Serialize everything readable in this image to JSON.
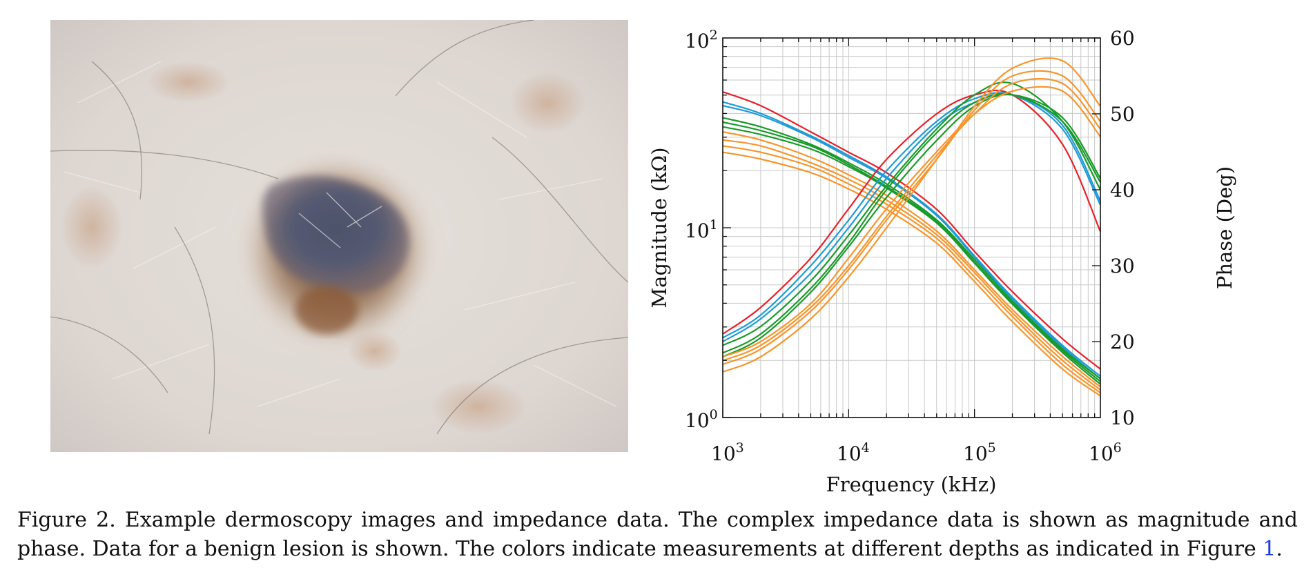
{
  "figure": {
    "caption_prefix": "Figure 2. Example dermoscopy images and impedance data.  The complex impedance data is shown as magnitude and phase. Data for a benign lesion is shown. The colors indicate measurements at different depths as indicated in Figure ",
    "caption_link": "1",
    "caption_suffix": "."
  },
  "chart_data": {
    "type": "line",
    "xlabel": "Frequency (kHz)",
    "ylabel": "Magnitude (kΩ)",
    "ylabel_right": "Phase (Deg)",
    "xscale": "log",
    "yscale": "log",
    "xlim": [
      1000,
      1000000
    ],
    "ylim": [
      1,
      100
    ],
    "ylim_right": [
      10,
      60
    ],
    "x_ticks": [
      {
        "base": "10",
        "exp": "3"
      },
      {
        "base": "10",
        "exp": "4"
      },
      {
        "base": "10",
        "exp": "5"
      },
      {
        "base": "10",
        "exp": "6"
      }
    ],
    "y_ticks": [
      {
        "base": "10",
        "exp": "0"
      },
      {
        "base": "10",
        "exp": "1"
      },
      {
        "base": "10",
        "exp": "2"
      }
    ],
    "y_ticks_right": [
      "10",
      "20",
      "30",
      "40",
      "50",
      "60"
    ],
    "grid": true,
    "colors": {
      "red": "#e8202a",
      "blue": "#1f9bd6",
      "green": "#1a9a2a",
      "orange": "#f7952b"
    },
    "x": [
      1000,
      2000,
      5000,
      10000,
      20000,
      50000,
      100000,
      200000,
      500000,
      1000000
    ],
    "series": [
      {
        "color": "red",
        "axis": "left",
        "values": [
          52,
          44,
          32,
          25,
          19.5,
          12.5,
          7.5,
          4.6,
          2.6,
          1.8
        ]
      },
      {
        "color": "blue",
        "axis": "left",
        "values": [
          46,
          40,
          30.5,
          24,
          18.5,
          11.8,
          7.1,
          4.3,
          2.4,
          1.65
        ]
      },
      {
        "color": "blue",
        "axis": "left",
        "values": [
          44,
          39,
          30,
          23.5,
          18.2,
          11.6,
          7.0,
          4.2,
          2.35,
          1.6
        ]
      },
      {
        "color": "green",
        "axis": "left",
        "values": [
          38,
          34,
          27.5,
          22,
          17,
          11.0,
          6.8,
          4.1,
          2.3,
          1.6
        ]
      },
      {
        "color": "green",
        "axis": "left",
        "values": [
          36,
          32.5,
          27,
          21.5,
          16.5,
          10.8,
          6.6,
          4.0,
          2.25,
          1.55
        ]
      },
      {
        "color": "green",
        "axis": "left",
        "values": [
          34,
          31,
          26,
          21,
          16.2,
          10.6,
          6.5,
          3.95,
          2.2,
          1.5
        ]
      },
      {
        "color": "orange",
        "axis": "left",
        "values": [
          32,
          29,
          23.5,
          19,
          14.8,
          9.6,
          6.0,
          3.7,
          2.1,
          1.45
        ]
      },
      {
        "color": "orange",
        "axis": "left",
        "values": [
          29,
          27,
          22,
          18,
          14.0,
          9.2,
          5.8,
          3.55,
          2.0,
          1.4
        ]
      },
      {
        "color": "orange",
        "axis": "left",
        "values": [
          27,
          25,
          21,
          17,
          13.3,
          8.8,
          5.5,
          3.4,
          1.9,
          1.35
        ]
      },
      {
        "color": "orange",
        "axis": "left",
        "values": [
          25,
          23,
          19.5,
          16,
          12.5,
          8.3,
          5.2,
          3.2,
          1.8,
          1.3
        ]
      },
      {
        "color": "red",
        "axis": "right",
        "values": [
          21,
          24.5,
          31,
          37.5,
          44,
          50,
          52.5,
          52.5,
          46,
          34.5
        ]
      },
      {
        "color": "blue",
        "axis": "right",
        "values": [
          20.5,
          23.5,
          30,
          36,
          42.5,
          49,
          52,
          52.5,
          48,
          38
        ]
      },
      {
        "color": "blue",
        "axis": "right",
        "values": [
          20,
          23,
          29,
          35,
          41.5,
          48.5,
          51.5,
          52.5,
          48.5,
          38.5
        ]
      },
      {
        "color": "green",
        "axis": "right",
        "values": [
          19.5,
          22,
          28,
          34,
          40.5,
          48,
          52.5,
          54,
          49,
          40
        ]
      },
      {
        "color": "green",
        "axis": "right",
        "values": [
          18.5,
          21,
          27,
          33,
          40,
          47.5,
          51.5,
          52.5,
          49,
          41
        ]
      },
      {
        "color": "green",
        "axis": "right",
        "values": [
          18,
          20.5,
          26.5,
          32.5,
          39,
          46.5,
          51,
          52.5,
          49.5,
          41.5
        ]
      },
      {
        "color": "orange",
        "axis": "right",
        "values": [
          18,
          20,
          25,
          31,
          37.5,
          45,
          50,
          53,
          53,
          47
        ]
      },
      {
        "color": "orange",
        "axis": "right",
        "values": [
          17.5,
          19.5,
          24.5,
          30,
          36.5,
          44.5,
          50,
          54,
          54,
          48
        ]
      },
      {
        "color": "orange",
        "axis": "right",
        "values": [
          17,
          19,
          24,
          29.5,
          36,
          44,
          50.5,
          55,
          55,
          49
        ]
      },
      {
        "color": "orange",
        "axis": "right",
        "values": [
          16,
          18,
          23,
          28.5,
          35,
          44,
          51,
          56,
          57,
          51
        ]
      }
    ]
  }
}
